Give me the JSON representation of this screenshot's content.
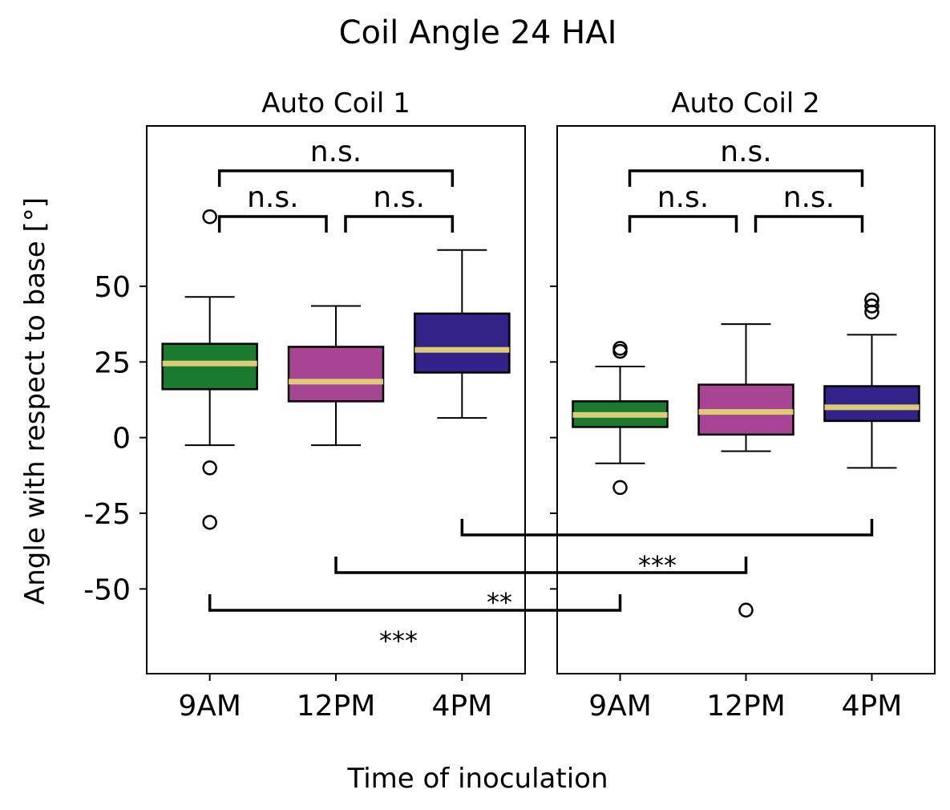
{
  "figure": {
    "title": "Coil Angle 24 HAI",
    "xlabel": "Time of inoculation",
    "ylabel": "Angle with respect to base [°]"
  },
  "colors": {
    "box_9am": "#1a7a30",
    "box_12pm": "#a84494",
    "box_4pm": "#332288",
    "median": "#ddcc77",
    "edge": "#000000"
  },
  "chart_data": [
    {
      "type": "box",
      "title": "Auto Coil 1",
      "categories": [
        "9AM",
        "12PM",
        "4PM"
      ],
      "ylim": [
        -78,
        103
      ],
      "yticks": [
        -50,
        -25,
        0,
        25,
        50
      ],
      "ytick_labels": [
        "-50",
        "-25",
        "0",
        "25",
        "50"
      ],
      "boxes": [
        {
          "category": "9AM",
          "whisker_low": -2.5,
          "q1": 16,
          "median": 24.5,
          "q3": 31,
          "whisker_high": 46.5,
          "outliers": [
            -10,
            -28,
            73
          ]
        },
        {
          "category": "12PM",
          "whisker_low": -2.5,
          "q1": 12,
          "median": 18.5,
          "q3": 30,
          "whisker_high": 43.5,
          "outliers": []
        },
        {
          "category": "4PM",
          "whisker_low": 6.5,
          "q1": 21.5,
          "median": 29,
          "q3": 41,
          "whisker_high": 62,
          "outliers": []
        }
      ],
      "brackets": [
        {
          "from": "9AM",
          "to": "12PM",
          "label": "n.s."
        },
        {
          "from": "12PM",
          "to": "4PM",
          "label": "n.s."
        },
        {
          "from": "9AM",
          "to": "4PM",
          "label": "n.s."
        }
      ]
    },
    {
      "type": "box",
      "title": "Auto Coil 2",
      "categories": [
        "9AM",
        "12PM",
        "4PM"
      ],
      "ylim": [
        -78,
        103
      ],
      "boxes": [
        {
          "category": "9AM",
          "whisker_low": -8.5,
          "q1": 3.5,
          "median": 7.5,
          "q3": 12,
          "whisker_high": 23.5,
          "outliers": [
            -16.5,
            28.5,
            29.5
          ]
        },
        {
          "category": "12PM",
          "whisker_low": -4.5,
          "q1": 1,
          "median": 8.5,
          "q3": 17.5,
          "whisker_high": 37.5,
          "outliers": [
            -57
          ]
        },
        {
          "category": "4PM",
          "whisker_low": -10,
          "q1": 5.5,
          "median": 10,
          "q3": 17,
          "whisker_high": 34,
          "outliers": [
            41.5,
            43.5,
            45.5
          ]
        }
      ],
      "brackets": [
        {
          "from": "9AM",
          "to": "12PM",
          "label": "n.s."
        },
        {
          "from": "12PM",
          "to": "4PM",
          "label": "n.s."
        },
        {
          "from": "9AM",
          "to": "4PM",
          "label": "n.s."
        }
      ]
    }
  ],
  "cross_comparisons": [
    {
      "from": "Auto Coil 1 4PM",
      "to": "Auto Coil 2 4PM",
      "label": ""
    },
    {
      "from": "Auto Coil 1 12PM",
      "to": "Auto Coil 2 12PM",
      "label": "***"
    },
    {
      "from": "Auto Coil 1 9AM",
      "to": "Auto Coil 2 9AM",
      "label": "**"
    },
    {
      "label": "***"
    }
  ]
}
